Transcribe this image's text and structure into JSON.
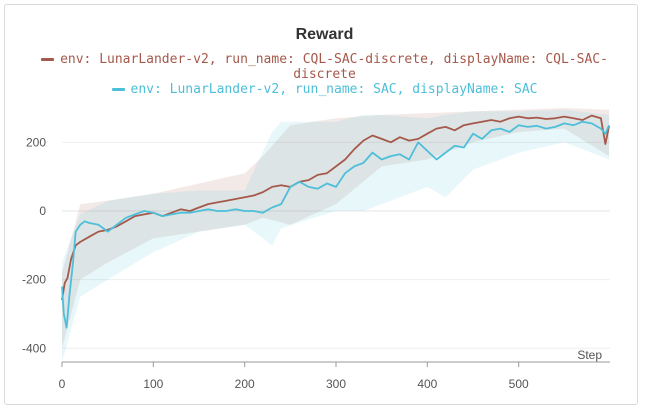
{
  "chart_data": {
    "type": "line",
    "title": "Reward",
    "xlabel": "Step",
    "ylabel": "",
    "xlim": [
      0,
      600
    ],
    "ylim": [
      -440,
      300
    ],
    "x_ticks": [
      "0",
      "100",
      "200",
      "300",
      "400",
      "500"
    ],
    "y_ticks": [
      "200",
      "0",
      "-200",
      "-400"
    ],
    "grid": true,
    "legend_position": "top",
    "series": [
      {
        "name": "env: LunarLander-v2, run_name: CQL-SAC-discrete, displayName: CQL-SAC-discrete",
        "legend_lines": [
          "env: LunarLander-v2, run_name: CQL-SAC-discrete, displayName: CQL-SAC-",
          "discrete"
        ],
        "color": "#a5594a",
        "x": [
          0,
          3,
          6,
          10,
          15,
          20,
          30,
          40,
          50,
          60,
          70,
          80,
          90,
          100,
          110,
          120,
          130,
          140,
          150,
          160,
          170,
          180,
          190,
          200,
          210,
          220,
          230,
          240,
          250,
          260,
          270,
          280,
          290,
          300,
          310,
          320,
          330,
          340,
          350,
          360,
          370,
          380,
          390,
          400,
          410,
          420,
          430,
          440,
          450,
          460,
          470,
          480,
          490,
          500,
          510,
          520,
          530,
          540,
          550,
          560,
          570,
          580,
          590,
          595,
          599
        ],
        "y": [
          -260,
          -210,
          -195,
          -140,
          -100,
          -90,
          -75,
          -60,
          -55,
          -45,
          -30,
          -15,
          -10,
          -5,
          -15,
          -5,
          5,
          0,
          10,
          20,
          25,
          30,
          35,
          40,
          45,
          55,
          70,
          75,
          70,
          85,
          90,
          105,
          110,
          130,
          150,
          180,
          205,
          220,
          210,
          200,
          215,
          205,
          210,
          225,
          240,
          245,
          235,
          250,
          255,
          260,
          265,
          260,
          270,
          275,
          270,
          272,
          268,
          270,
          275,
          270,
          265,
          278,
          270,
          195,
          248
        ]
      },
      {
        "name": "env: LunarLander-v2, run_name: SAC, displayName: SAC",
        "legend_lines": [
          "env: LunarLander-v2, run_name: SAC, displayName: SAC"
        ],
        "color": "#4dbfd9",
        "x": [
          0,
          2,
          5,
          8,
          12,
          15,
          20,
          25,
          30,
          40,
          50,
          60,
          70,
          80,
          90,
          100,
          110,
          120,
          130,
          140,
          150,
          160,
          170,
          180,
          190,
          200,
          210,
          220,
          230,
          240,
          250,
          260,
          270,
          280,
          290,
          300,
          310,
          320,
          330,
          340,
          350,
          360,
          370,
          380,
          390,
          400,
          410,
          420,
          430,
          440,
          450,
          460,
          470,
          480,
          490,
          500,
          510,
          520,
          530,
          540,
          550,
          560,
          570,
          580,
          590,
          595,
          599
        ],
        "y": [
          -220,
          -300,
          -340,
          -250,
          -150,
          -60,
          -40,
          -30,
          -35,
          -40,
          -60,
          -40,
          -20,
          -10,
          0,
          -5,
          -15,
          -10,
          -5,
          -5,
          0,
          5,
          0,
          0,
          5,
          0,
          0,
          -5,
          10,
          20,
          70,
          85,
          70,
          65,
          80,
          70,
          110,
          130,
          140,
          170,
          150,
          160,
          165,
          150,
          200,
          175,
          150,
          170,
          190,
          185,
          225,
          210,
          235,
          240,
          230,
          250,
          245,
          248,
          240,
          245,
          255,
          250,
          260,
          255,
          240,
          225,
          250
        ]
      }
    ],
    "bands": [
      {
        "series": 0,
        "color": "#a5594a",
        "x": [
          0,
          20,
          50,
          100,
          150,
          200,
          220,
          250,
          300,
          350,
          400,
          450,
          500,
          550,
          599
        ],
        "upper": [
          -180,
          20,
          30,
          50,
          80,
          110,
          160,
          250,
          270,
          280,
          285,
          290,
          295,
          300,
          295
        ],
        "lower": [
          -400,
          -200,
          -150,
          -80,
          -60,
          -40,
          -20,
          -40,
          20,
          130,
          150,
          200,
          230,
          240,
          160
        ]
      },
      {
        "series": 1,
        "color": "#4dbfd9",
        "x": [
          0,
          20,
          50,
          100,
          150,
          200,
          230,
          240,
          300,
          330,
          350,
          400,
          420,
          450,
          500,
          550,
          599
        ],
        "upper": [
          -150,
          -10,
          30,
          50,
          60,
          60,
          230,
          260,
          260,
          280,
          280,
          270,
          280,
          290,
          290,
          295,
          280
        ],
        "lower": [
          -440,
          -250,
          -200,
          -120,
          -60,
          -40,
          -100,
          -50,
          0,
          0,
          20,
          70,
          40,
          120,
          170,
          200,
          150
        ]
      }
    ]
  }
}
